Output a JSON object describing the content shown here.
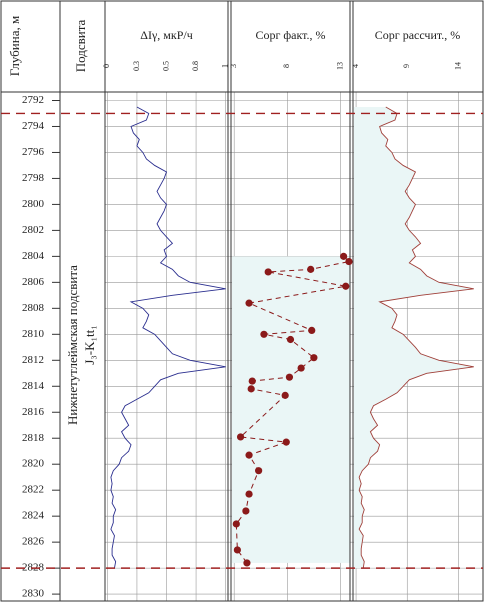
{
  "depth_axis": {
    "label": "Глубина, м",
    "ylim": [
      2791.5,
      2830.3
    ],
    "yticks": [
      2792,
      2794,
      2796,
      2798,
      2800,
      2802,
      2804,
      2806,
      2808,
      2810,
      2812,
      2814,
      2816,
      2818,
      2820,
      2822,
      2824,
      2826,
      2828,
      2830
    ]
  },
  "unit_column": {
    "header": "Подсвита",
    "name": "Нижнетутлеймская подсвита",
    "index": "J₃-K₁tt₁"
  },
  "boundaries": [
    2793,
    2828
  ],
  "chart_data": [
    {
      "type": "line",
      "title": "ΔIγ, мкР/ч",
      "color": "#2b2f8f",
      "xlim": [
        -0.02,
        1.02
      ],
      "xticks": [
        0,
        {
          "value": 0.25,
          "label": "0.3"
        },
        0.5,
        {
          "value": 0.75,
          "label": "0.8"
        },
        1
      ],
      "y": [
        2792.5,
        2793,
        2793.5,
        2794,
        2794.5,
        2795,
        2795.5,
        2796,
        2796.5,
        2797,
        2797.5,
        2798,
        2798.5,
        2799,
        2799.5,
        2800,
        2800.5,
        2801,
        2801.5,
        2802,
        2802.5,
        2803,
        2803.5,
        2804,
        2804.5,
        2805,
        2805.5,
        2806,
        2806.5,
        2807,
        2807.5,
        2808,
        2808.5,
        2809,
        2809.5,
        2810,
        2810.5,
        2811,
        2811.5,
        2812,
        2812.5,
        2813,
        2813.5,
        2814,
        2814.5,
        2815,
        2815.5,
        2816,
        2816.5,
        2817,
        2817.5,
        2818,
        2818.5,
        2819,
        2819.5,
        2820,
        2820.5,
        2821,
        2821.5,
        2822,
        2822.5,
        2823,
        2823.5,
        2824,
        2824.5,
        2825,
        2825.5,
        2826,
        2826.5,
        2827,
        2827.5,
        2828
      ],
      "values": [
        0.25,
        0.35,
        0.33,
        0.2,
        0.22,
        0.27,
        0.25,
        0.3,
        0.33,
        0.4,
        0.5,
        0.48,
        0.45,
        0.42,
        0.45,
        0.5,
        0.48,
        0.45,
        0.42,
        0.45,
        0.5,
        0.55,
        0.48,
        0.5,
        0.45,
        0.55,
        0.6,
        0.7,
        1.0,
        0.55,
        0.2,
        0.3,
        0.35,
        0.33,
        0.3,
        0.4,
        0.45,
        0.5,
        0.55,
        0.7,
        1.0,
        0.6,
        0.45,
        0.4,
        0.35,
        0.25,
        0.15,
        0.12,
        0.15,
        0.18,
        0.12,
        0.15,
        0.2,
        0.18,
        0.12,
        0.1,
        0.05,
        0.03,
        0.04,
        0.03,
        0.05,
        0.04,
        0.07,
        0.05,
        0.05,
        0.03,
        0.06,
        0.05,
        0.04,
        0.04,
        0.07,
        0.06
      ]
    },
    {
      "type": "scatter",
      "title": "Сорг факт., %",
      "color": "#8b1a1a",
      "fill": "#eaf6f6",
      "xlim": [
        2.7,
        13.9
      ],
      "xticks": [
        3,
        8,
        13
      ],
      "y": [
        2804.0,
        2804.4,
        2805.0,
        2805.2,
        2806.3,
        2807.6,
        2809.7,
        2810.0,
        2810.4,
        2811.8,
        2812.6,
        2813.3,
        2813.6,
        2814.2,
        2814.7,
        2817.9,
        2818.3,
        2819.3,
        2820.5,
        2822.3,
        2823.6,
        2824.6,
        2826.6,
        2827.6
      ],
      "values": [
        13.3,
        13.8,
        10.2,
        6.2,
        13.5,
        4.4,
        10.3,
        5.8,
        8.3,
        10.5,
        9.3,
        8.2,
        4.7,
        4.6,
        7.8,
        3.6,
        7.9,
        4.4,
        5.3,
        4.4,
        4.1,
        3.2,
        3.3,
        4.2
      ]
    },
    {
      "type": "line",
      "title": "Сорг рассчит., %",
      "color": "#a0403a",
      "fill": "#eaf6f6",
      "xlim": [
        3.7,
        16.3
      ],
      "xticks": [
        4,
        9,
        14
      ],
      "y": [
        2792.5,
        2793,
        2793.5,
        2794,
        2794.5,
        2795,
        2795.5,
        2796,
        2796.5,
        2797,
        2797.5,
        2798,
        2798.5,
        2799,
        2799.5,
        2800,
        2800.5,
        2801,
        2801.5,
        2802,
        2802.5,
        2803,
        2803.5,
        2804,
        2804.5,
        2805,
        2805.5,
        2806,
        2806.5,
        2807,
        2807.5,
        2808,
        2808.5,
        2809,
        2809.5,
        2810,
        2810.5,
        2811,
        2811.5,
        2812,
        2812.5,
        2813,
        2813.5,
        2814,
        2814.5,
        2815,
        2815.5,
        2816,
        2816.5,
        2817,
        2817.5,
        2818,
        2818.5,
        2819,
        2819.5,
        2820,
        2820.5,
        2821,
        2821.5,
        2822,
        2822.5,
        2823,
        2823.5,
        2824,
        2824.5,
        2825,
        2825.5,
        2826,
        2826.5,
        2827,
        2827.5,
        2828
      ],
      "values": [
        6.9,
        8.0,
        7.8,
        6.3,
        6.5,
        7.1,
        6.9,
        7.5,
        7.8,
        8.6,
        9.8,
        9.5,
        9.2,
        8.8,
        9.2,
        9.8,
        9.5,
        9.2,
        8.8,
        9.2,
        9.8,
        10.3,
        9.5,
        9.8,
        9.2,
        10.3,
        10.9,
        12.1,
        15.5,
        10.3,
        6.3,
        7.5,
        8.0,
        7.8,
        7.5,
        8.6,
        9.2,
        9.8,
        10.3,
        12.1,
        15.5,
        10.9,
        9.2,
        8.6,
        8.0,
        6.9,
        5.7,
        5.4,
        5.7,
        6.1,
        5.4,
        5.7,
        6.3,
        6.1,
        5.4,
        5.2,
        4.6,
        4.3,
        4.5,
        4.3,
        4.6,
        4.5,
        4.8,
        4.6,
        4.6,
        4.3,
        4.7,
        4.6,
        4.5,
        4.5,
        4.8,
        4.7
      ]
    }
  ]
}
